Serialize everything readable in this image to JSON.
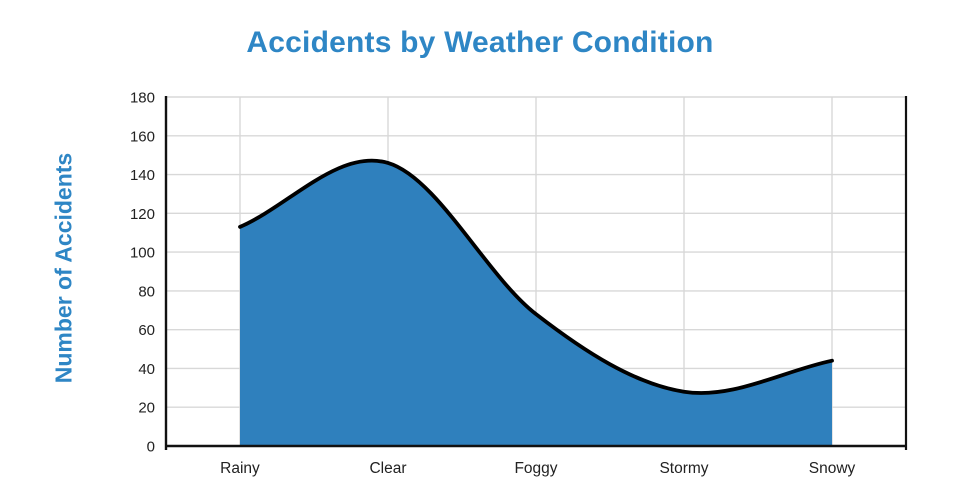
{
  "page": {
    "background": "#ffffff"
  },
  "chart_data": {
    "type": "area",
    "title": "Accidents by Weather Condition",
    "ylabel": "Number of Accidents",
    "xlabel": "",
    "categories": [
      "Rainy",
      "Clear",
      "Foggy",
      "Stormy",
      "Snowy"
    ],
    "values": [
      113,
      146,
      68,
      28,
      44
    ],
    "yticks": [
      0,
      20,
      40,
      60,
      80,
      100,
      120,
      140,
      160,
      180
    ],
    "ylim": [
      0,
      180
    ],
    "grid": true,
    "smooth": true,
    "legend_position": "none",
    "colors": {
      "area_fill": "#2f80bd",
      "curve_line": "#000000",
      "title_text": "#2e86c5",
      "ylabel_text": "#2e86c5",
      "tick_text": "#222222",
      "gridline": "#d8d8d8",
      "axis_line": "#111111"
    }
  }
}
